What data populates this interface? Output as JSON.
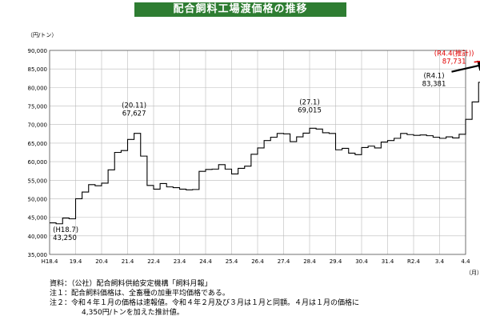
{
  "title": "配合飼料工場渡価格の推移",
  "y_unit": "（円/トン）",
  "x_unit": "（月）",
  "colors": {
    "title_bg": "#2e7d32",
    "line": "#000000",
    "grid": "#bbbbbb",
    "estimate": "#e00000"
  },
  "chart_data": {
    "type": "line",
    "title": "配合飼料工場渡価格の推移",
    "xlabel": "",
    "ylabel": "（円/トン）",
    "ylim": [
      35000,
      90000
    ],
    "yticks": [
      35000,
      40000,
      45000,
      50000,
      55000,
      60000,
      65000,
      70000,
      75000,
      80000,
      85000,
      90000
    ],
    "ytick_labels": [
      "35,000",
      "40,000",
      "45,000",
      "50,000",
      "55,000",
      "60,000",
      "65,000",
      "70,000",
      "75,000",
      "80,000",
      "85,000",
      "90,000"
    ],
    "grid": true,
    "xtick_labels": [
      "H18.4",
      "19.4",
      "20.4",
      "21.4",
      "22.4",
      "23.4",
      "24.4",
      "25.4",
      "26.4",
      "27.4",
      "28.4",
      "29.4",
      "30.4",
      "31.4",
      "R2.4",
      "3.4",
      "4.4"
    ],
    "x_start": "H18.4",
    "quarter_step": true,
    "series": [
      {
        "values": [
          43500,
          43250,
          44800,
          44600,
          50000,
          51800,
          53800,
          53500,
          54200,
          57800,
          62500,
          63000,
          66000,
          67627,
          61500,
          53600,
          52600,
          54100,
          53200,
          53000,
          52600,
          52400,
          52500,
          57400,
          57900,
          58000,
          59200,
          58000,
          56700,
          58200,
          58800,
          62000,
          63700,
          65700,
          66600,
          67600,
          67500,
          65400,
          66700,
          67700,
          69015,
          68800,
          67800,
          67600,
          63200,
          63600,
          62300,
          61900,
          63800,
          64200,
          63700,
          65300,
          65700,
          66300,
          67600,
          67300,
          67100,
          67200,
          67000,
          66600,
          66300,
          66700,
          66400,
          67400,
          71400,
          76100,
          81400,
          80900,
          83381
        ],
        "color": "#000000"
      },
      {
        "name": "推計",
        "x_index_start": 68,
        "values": [
          83381,
          87731
        ],
        "color": "#e00000",
        "dashed": true
      }
    ],
    "annotations": [
      {
        "label": "(H18.7)",
        "value_text": "43,250",
        "x_index": 1,
        "value": 43250
      },
      {
        "label": "(20.11)",
        "value_text": "67,627",
        "x_index": 13,
        "value": 67627
      },
      {
        "label": "(27.1)",
        "value_text": "69,015",
        "x_index": 40,
        "value": 69015
      },
      {
        "label": "(R4.1)",
        "value_text": "83,381",
        "x_index": 68,
        "value": 83381
      },
      {
        "label": "(R4.4(推計))",
        "value_text": "87,731",
        "x_index": 69,
        "value": 87731
      }
    ]
  },
  "notes": {
    "source": "資料：（公社）配合飼料供給安定機構「飼料月報」",
    "note1": "注１：配合飼料価格は、全畜種の加重平均価格である。",
    "note2_line1": "注２：令和４年１月の価格は速報値。令和４年２月及び３月は１月と同額。４月は１月の価格に",
    "note2_line2": "4,350円/トンを加えた推計値。"
  }
}
